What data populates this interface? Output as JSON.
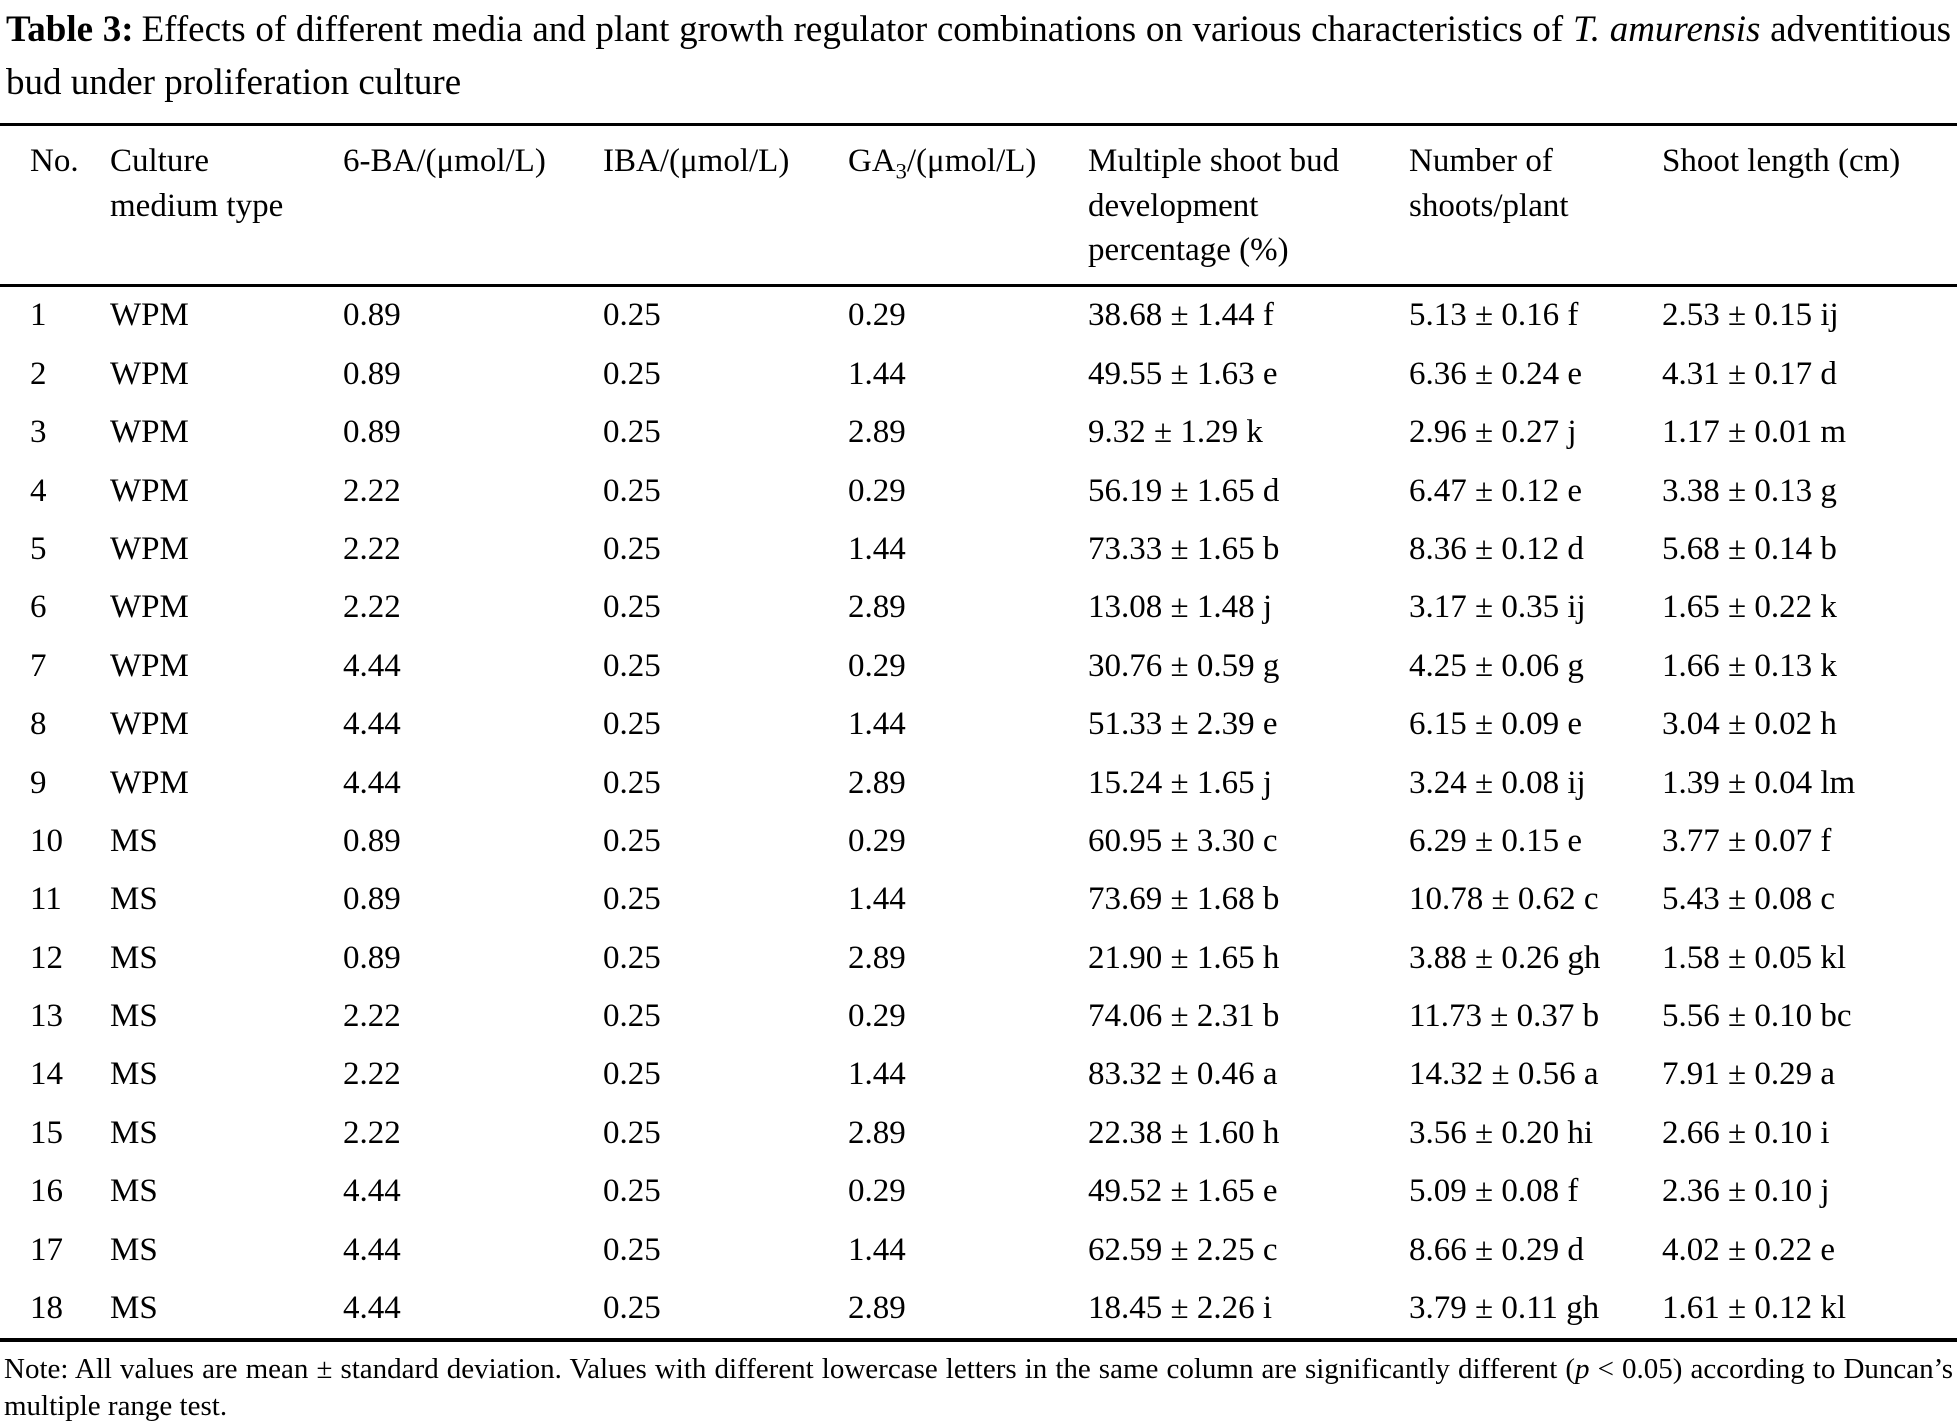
{
  "caption": {
    "label": "Table 3:",
    "intro": "Effects of different media and plant growth regulator combinations on various characteristics of ",
    "species": "T. amurensis",
    "tail": " adventitious bud under proliferation culture"
  },
  "table": {
    "headers": {
      "no": "No.",
      "medium_line1": "Culture",
      "medium_line2": "medium type",
      "ba6": "6-BA/(μmol/L)",
      "iba": "IBA/(μmol/L)",
      "ga3_base": "GA",
      "ga3_sub": "3",
      "ga3_unit": "/(μmol/L)",
      "multiple_shoot": "Multiple shoot bud development percentage (%)",
      "num_shoots": "Number of shoots/plant",
      "shoot_length": "Shoot length (cm)"
    },
    "rows": [
      [
        "1",
        "WPM",
        "0.89",
        "0.25",
        "0.29",
        "38.68 ± 1.44 f",
        "5.13 ± 0.16 f",
        "2.53 ± 0.15 ij"
      ],
      [
        "2",
        "WPM",
        "0.89",
        "0.25",
        "1.44",
        "49.55 ± 1.63 e",
        "6.36 ± 0.24 e",
        "4.31 ± 0.17 d"
      ],
      [
        "3",
        "WPM",
        "0.89",
        "0.25",
        "2.89",
        "9.32 ± 1.29 k",
        "2.96 ± 0.27 j",
        "1.17 ± 0.01 m"
      ],
      [
        "4",
        "WPM",
        "2.22",
        "0.25",
        "0.29",
        "56.19 ± 1.65 d",
        "6.47 ± 0.12 e",
        "3.38 ± 0.13 g"
      ],
      [
        "5",
        "WPM",
        "2.22",
        "0.25",
        "1.44",
        "73.33 ± 1.65 b",
        "8.36 ± 0.12 d",
        "5.68 ± 0.14 b"
      ],
      [
        "6",
        "WPM",
        "2.22",
        "0.25",
        "2.89",
        "13.08 ± 1.48 j",
        "3.17 ± 0.35 ij",
        "1.65 ± 0.22 k"
      ],
      [
        "7",
        "WPM",
        "4.44",
        "0.25",
        "0.29",
        "30.76 ± 0.59 g",
        "4.25 ± 0.06 g",
        "1.66 ± 0.13 k"
      ],
      [
        "8",
        "WPM",
        "4.44",
        "0.25",
        "1.44",
        "51.33 ± 2.39 e",
        "6.15 ± 0.09 e",
        "3.04 ± 0.02 h"
      ],
      [
        "9",
        "WPM",
        "4.44",
        "0.25",
        "2.89",
        "15.24 ± 1.65 j",
        "3.24 ± 0.08 ij",
        "1.39 ± 0.04 lm"
      ],
      [
        "10",
        "MS",
        "0.89",
        "0.25",
        "0.29",
        "60.95 ± 3.30 c",
        "6.29 ± 0.15 e",
        "3.77 ± 0.07 f"
      ],
      [
        "11",
        "MS",
        "0.89",
        "0.25",
        "1.44",
        "73.69 ± 1.68 b",
        "10.78 ± 0.62 c",
        "5.43 ± 0.08 c"
      ],
      [
        "12",
        "MS",
        "0.89",
        "0.25",
        "2.89",
        "21.90 ± 1.65 h",
        "3.88 ± 0.26 gh",
        "1.58 ± 0.05 kl"
      ],
      [
        "13",
        "MS",
        "2.22",
        "0.25",
        "0.29",
        "74.06 ± 2.31 b",
        "11.73 ± 0.37 b",
        "5.56 ± 0.10 bc"
      ],
      [
        "14",
        "MS",
        "2.22",
        "0.25",
        "1.44",
        "83.32 ± 0.46 a",
        "14.32 ± 0.56 a",
        "7.91 ± 0.29 a"
      ],
      [
        "15",
        "MS",
        "2.22",
        "0.25",
        "2.89",
        "22.38 ± 1.60 h",
        "3.56 ± 0.20 hi",
        "2.66 ± 0.10 i"
      ],
      [
        "16",
        "MS",
        "4.44",
        "0.25",
        "0.29",
        "49.52 ± 1.65 e",
        "5.09 ± 0.08 f",
        "2.36 ± 0.10 j"
      ],
      [
        "17",
        "MS",
        "4.44",
        "0.25",
        "1.44",
        "62.59 ± 2.25 c",
        "8.66 ± 0.29 d",
        "4.02 ± 0.22 e"
      ],
      [
        "18",
        "MS",
        "4.44",
        "0.25",
        "2.89",
        "18.45 ± 2.26 i",
        "3.79 ± 0.11 gh",
        "1.61 ± 0.12 kl"
      ]
    ]
  },
  "note": {
    "before_p": "Note: All values are mean ± standard deviation. Values with different lowercase letters in the same column are significantly different (",
    "p_symbol": "p",
    "after_p": " < 0.05) according to Duncan’s multiple range test."
  }
}
